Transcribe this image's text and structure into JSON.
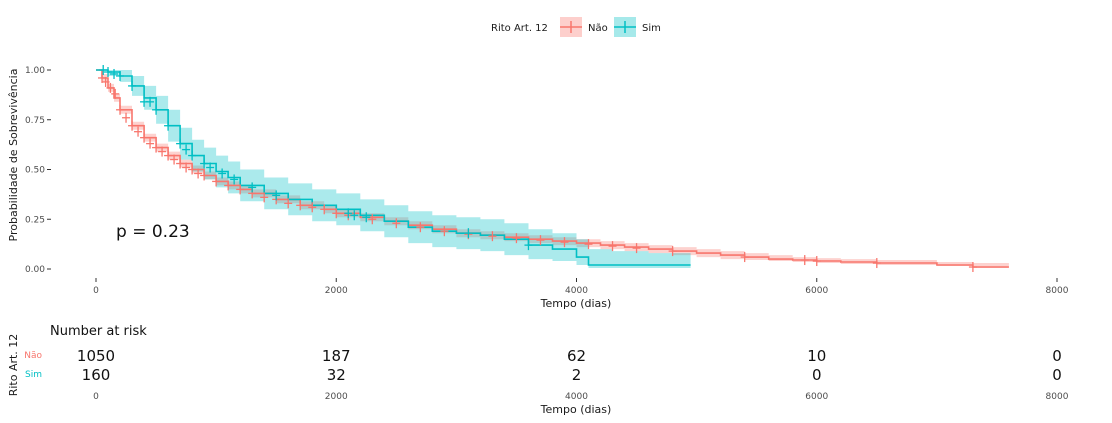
{
  "chart_data": {
    "type": "line",
    "subtype": "kaplan-meier survival curve with 95% CI bands",
    "title": "",
    "xlabel": "Tempo (dias)",
    "ylabel": "Probabilidade de Sobrevivência",
    "xlim": [
      0,
      8000
    ],
    "ylim": [
      0,
      1
    ],
    "x_ticks": [
      0,
      2000,
      4000,
      6000,
      8000
    ],
    "y_ticks": [
      0,
      0.25,
      0.5,
      0.75,
      1.0
    ],
    "y_tick_labels": [
      "0.00",
      "0.25",
      "0.50",
      "0.75",
      "1.00"
    ],
    "grid": false,
    "legend": {
      "title": "Rito Art. 12",
      "position": "top"
    },
    "annotation": "p = 0.23",
    "series": [
      {
        "name": "Não",
        "color": "#F8766D",
        "x": [
          0,
          50,
          100,
          150,
          200,
          300,
          400,
          500,
          600,
          700,
          800,
          900,
          1000,
          1100,
          1200,
          1300,
          1500,
          1700,
          1900,
          2000,
          2200,
          2400,
          2600,
          2800,
          3000,
          3200,
          3400,
          3600,
          3800,
          4000,
          4200,
          4400,
          4600,
          4800,
          5000,
          5200,
          5400,
          5600,
          5800,
          6000,
          6200,
          6500,
          7000,
          7300,
          7600
        ],
        "y": [
          1.0,
          0.96,
          0.91,
          0.86,
          0.8,
          0.72,
          0.66,
          0.61,
          0.57,
          0.53,
          0.5,
          0.47,
          0.44,
          0.42,
          0.4,
          0.38,
          0.35,
          0.32,
          0.3,
          0.28,
          0.26,
          0.24,
          0.22,
          0.2,
          0.18,
          0.17,
          0.16,
          0.15,
          0.14,
          0.13,
          0.12,
          0.11,
          0.1,
          0.09,
          0.08,
          0.07,
          0.06,
          0.05,
          0.045,
          0.04,
          0.035,
          0.03,
          0.02,
          0.01,
          0.01
        ],
        "ci_lower": [
          1.0,
          0.94,
          0.89,
          0.84,
          0.78,
          0.7,
          0.64,
          0.59,
          0.55,
          0.51,
          0.48,
          0.45,
          0.42,
          0.4,
          0.38,
          0.36,
          0.33,
          0.3,
          0.28,
          0.26,
          0.24,
          0.22,
          0.2,
          0.18,
          0.16,
          0.15,
          0.14,
          0.13,
          0.12,
          0.11,
          0.1,
          0.09,
          0.08,
          0.07,
          0.06,
          0.05,
          0.045,
          0.04,
          0.035,
          0.03,
          0.025,
          0.02,
          0.015,
          0.005,
          0.005
        ],
        "ci_upper": [
          1.0,
          0.98,
          0.93,
          0.88,
          0.82,
          0.74,
          0.68,
          0.63,
          0.59,
          0.55,
          0.52,
          0.49,
          0.46,
          0.44,
          0.42,
          0.4,
          0.37,
          0.34,
          0.32,
          0.3,
          0.28,
          0.26,
          0.24,
          0.22,
          0.2,
          0.19,
          0.18,
          0.17,
          0.16,
          0.15,
          0.14,
          0.13,
          0.12,
          0.11,
          0.1,
          0.09,
          0.08,
          0.07,
          0.06,
          0.055,
          0.05,
          0.045,
          0.035,
          0.03,
          0.03
        ],
        "censor_x": [
          50,
          80,
          120,
          160,
          200,
          250,
          300,
          350,
          400,
          450,
          500,
          550,
          600,
          650,
          700,
          750,
          800,
          850,
          900,
          1000,
          1100,
          1200,
          1300,
          1400,
          1500,
          1600,
          1700,
          1800,
          1900,
          2000,
          2100,
          2300,
          2500,
          2700,
          2900,
          3100,
          3300,
          3500,
          3700,
          3900,
          4100,
          4300,
          4500,
          4800,
          5400,
          5900,
          6000,
          6500,
          7300
        ],
        "censor_y": [
          0.96,
          0.94,
          0.91,
          0.88,
          0.8,
          0.76,
          0.72,
          0.69,
          0.66,
          0.63,
          0.61,
          0.59,
          0.57,
          0.55,
          0.53,
          0.51,
          0.5,
          0.48,
          0.47,
          0.44,
          0.42,
          0.4,
          0.38,
          0.36,
          0.35,
          0.33,
          0.32,
          0.31,
          0.3,
          0.28,
          0.27,
          0.25,
          0.23,
          0.21,
          0.19,
          0.175,
          0.165,
          0.155,
          0.145,
          0.135,
          0.125,
          0.115,
          0.105,
          0.09,
          0.06,
          0.045,
          0.04,
          0.03,
          0.01
        ]
      },
      {
        "name": "Sim",
        "color": "#00BFC4",
        "x": [
          0,
          100,
          200,
          300,
          400,
          500,
          600,
          700,
          800,
          900,
          1000,
          1100,
          1200,
          1400,
          1600,
          1800,
          2000,
          2200,
          2400,
          2600,
          2800,
          3000,
          3200,
          3400,
          3600,
          3800,
          4000,
          4100,
          4300,
          4600,
          4950
        ],
        "y": [
          1.0,
          0.99,
          0.97,
          0.92,
          0.86,
          0.8,
          0.72,
          0.63,
          0.57,
          0.53,
          0.49,
          0.46,
          0.42,
          0.38,
          0.35,
          0.32,
          0.3,
          0.27,
          0.24,
          0.21,
          0.19,
          0.18,
          0.17,
          0.15,
          0.12,
          0.1,
          0.06,
          0.02,
          0.02,
          0.02,
          0.02
        ],
        "ci_lower": [
          1.0,
          0.97,
          0.94,
          0.87,
          0.8,
          0.73,
          0.64,
          0.55,
          0.49,
          0.45,
          0.41,
          0.38,
          0.34,
          0.3,
          0.27,
          0.24,
          0.22,
          0.19,
          0.16,
          0.13,
          0.11,
          0.1,
          0.09,
          0.07,
          0.05,
          0.04,
          0.02,
          0.005,
          0.005,
          0.005,
          0.005
        ],
        "ci_upper": [
          1.0,
          1.0,
          1.0,
          0.97,
          0.92,
          0.87,
          0.8,
          0.71,
          0.65,
          0.61,
          0.57,
          0.54,
          0.5,
          0.46,
          0.43,
          0.4,
          0.38,
          0.35,
          0.32,
          0.29,
          0.27,
          0.26,
          0.25,
          0.23,
          0.2,
          0.18,
          0.15,
          0.1,
          0.09,
          0.08,
          0.08
        ],
        "censor_x": [
          60,
          100,
          150,
          200,
          300,
          400,
          450,
          500,
          600,
          700,
          750,
          800,
          900,
          950,
          1050,
          1150,
          1300,
          1500,
          2100,
          2150,
          2250,
          3100,
          3600
        ],
        "censor_y": [
          1.0,
          0.99,
          0.98,
          0.97,
          0.92,
          0.84,
          0.84,
          0.8,
          0.72,
          0.63,
          0.6,
          0.57,
          0.53,
          0.51,
          0.48,
          0.45,
          0.41,
          0.37,
          0.28,
          0.27,
          0.26,
          0.18,
          0.12
        ]
      }
    ]
  },
  "risk_table": {
    "title": "Number at risk",
    "ylabel": "Rito Art. 12",
    "xlabel": "Tempo (dias)",
    "times": [
      0,
      2000,
      4000,
      6000,
      8000
    ],
    "rows": [
      {
        "name": "Não",
        "color": "#F8766D",
        "counts": [
          1050,
          187,
          62,
          10,
          0
        ]
      },
      {
        "name": "Sim",
        "color": "#00BFC4",
        "counts": [
          160,
          32,
          2,
          0,
          0
        ]
      }
    ]
  }
}
